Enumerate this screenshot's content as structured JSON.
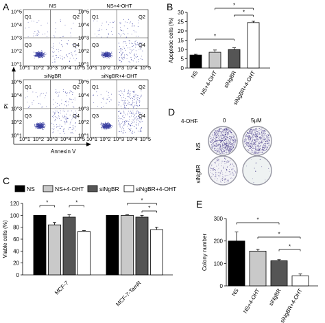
{
  "panels": {
    "A": {
      "label": "A",
      "subplot_titles": [
        "NS",
        "NS+4-OHT",
        "siNgBR",
        "siNgBR+4-OHT"
      ],
      "quadrants": [
        "Q1",
        "Q2",
        "Q3",
        "Q4"
      ],
      "tick_labels": [
        "10^1",
        "10^2",
        "10^3",
        "10^4",
        "10^5"
      ],
      "y_axis_label": "PI",
      "x_axis_label": "Annexin V"
    },
    "B": {
      "label": "B"
    },
    "C": {
      "label": "C"
    },
    "D": {
      "label": "D",
      "treatment_label": "4-OHT",
      "columns": [
        "0",
        "5μM"
      ],
      "rows": [
        "NS",
        "siNgBR"
      ]
    },
    "E": {
      "label": "E"
    }
  },
  "colors": {
    "black": "#000000",
    "light_gray": "#c9c9c9",
    "dark_gray": "#555555",
    "white": "#ffffff",
    "dish_dots": "#4b3f8c"
  },
  "chart_data": [
    {
      "id": "B",
      "type": "bar",
      "categories": [
        "NS",
        "NS+4-OHT",
        "siNgBR",
        "siNgBR+4-OHT"
      ],
      "values": [
        7,
        8.5,
        10,
        24.5
      ],
      "errors": [
        0.4,
        1.2,
        0.9,
        0.7
      ],
      "colors": [
        "#000000",
        "#c9c9c9",
        "#555555",
        "#ffffff"
      ],
      "ylabel": "Apoptotic cells (%)",
      "ylim": [
        0,
        30
      ],
      "yticks": [
        0,
        5,
        10,
        15,
        20,
        25,
        30
      ],
      "significance": [
        "*",
        "*",
        "*"
      ]
    },
    {
      "id": "C",
      "type": "bar",
      "categories": [
        "MCF-7",
        "MCF-7-TamR"
      ],
      "series": [
        {
          "name": "NS",
          "values": [
            100,
            100
          ],
          "errors": [
            0,
            0
          ],
          "color": "#000000"
        },
        {
          "name": "NS+4-OHT",
          "values": [
            84,
            100
          ],
          "errors": [
            4,
            1
          ],
          "color": "#c9c9c9"
        },
        {
          "name": "siNgBR",
          "values": [
            97,
            97
          ],
          "errors": [
            4,
            3
          ],
          "color": "#555555"
        },
        {
          "name": "siNgBR+4-OHT",
          "values": [
            73,
            76
          ],
          "errors": [
            1.5,
            4
          ],
          "color": "#ffffff"
        }
      ],
      "ylabel": "Viable cells (%)",
      "ylim": [
        0,
        120
      ],
      "yticks": [
        0,
        20,
        40,
        60,
        80,
        100,
        120
      ],
      "significance": [
        "*",
        "*",
        "*",
        "*"
      ]
    },
    {
      "id": "E",
      "type": "bar",
      "categories": [
        "NS",
        "NS+4-OHT",
        "siNgBR",
        "siNgBR+4-OHT"
      ],
      "values": [
        200,
        155,
        112,
        45
      ],
      "errors": [
        40,
        8,
        5,
        8
      ],
      "colors": [
        "#000000",
        "#c9c9c9",
        "#555555",
        "#ffffff"
      ],
      "ylabel": "Colony number",
      "ylim": [
        0,
        300
      ],
      "yticks": [
        0,
        100,
        200,
        300
      ],
      "significance": [
        "*",
        "*",
        "*"
      ]
    }
  ]
}
